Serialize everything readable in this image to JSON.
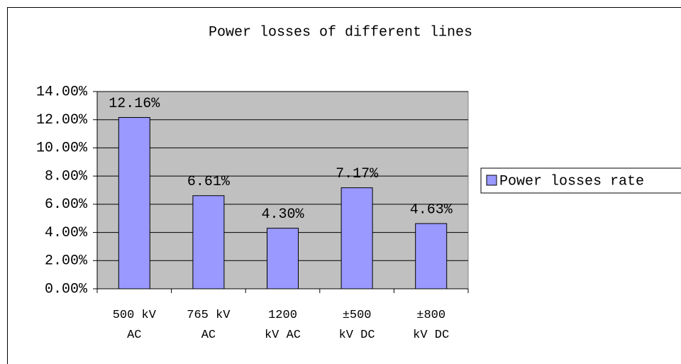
{
  "chart_data": {
    "type": "bar",
    "title": "Power losses of different lines",
    "categories": [
      "500 kV AC",
      "765 kV AC",
      "1200 kV AC",
      "±500 kV DC",
      "±800 kV DC"
    ],
    "series": [
      {
        "name": "Power losses rate",
        "color": "#9999ff",
        "values": [
          12.16,
          6.61,
          4.3,
          7.17,
          4.63
        ],
        "value_labels": [
          "12.16%",
          "6.61%",
          "4.30%",
          "7.17%",
          "4.63%"
        ]
      }
    ],
    "ylim": [
      0,
      14
    ],
    "yticks": [
      {
        "value": 0,
        "label": "0.00%"
      },
      {
        "value": 2,
        "label": "2.00%"
      },
      {
        "value": 4,
        "label": "4.00%"
      },
      {
        "value": 6,
        "label": "6.00%"
      },
      {
        "value": 8,
        "label": "8.00%"
      },
      {
        "value": 10,
        "label": "10.00%"
      },
      {
        "value": 12,
        "label": "12.00%"
      },
      {
        "value": 14,
        "label": "14.00%"
      }
    ],
    "grid": true,
    "legend": "right"
  }
}
